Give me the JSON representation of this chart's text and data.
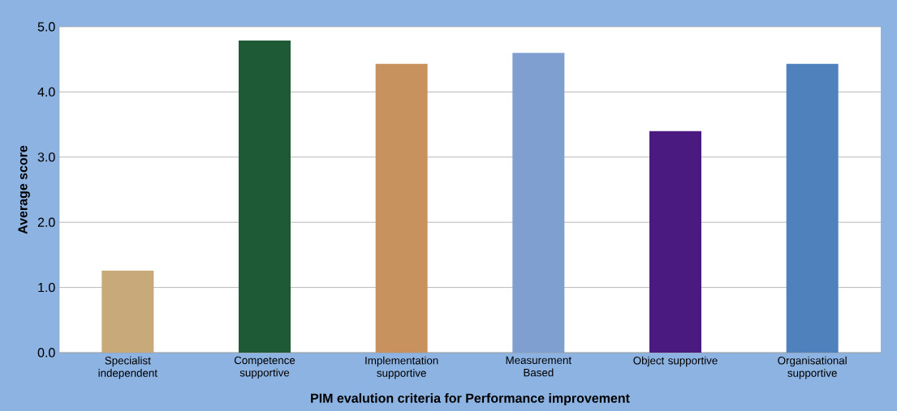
{
  "chart_data": {
    "type": "bar",
    "xlabel": "PIM evalution criteria for Performance improvement",
    "ylabel": "Average score",
    "categories": [
      "Specialist independent",
      "Competence supportive",
      "Implementation supportive",
      "Measurement Based",
      "Object supportive",
      "Organisational supportive"
    ],
    "values": [
      1.26,
      4.79,
      4.43,
      4.6,
      3.4,
      4.43
    ],
    "colors": [
      "#c8a97a",
      "#1e5a36",
      "#c8925e",
      "#7f9fd0",
      "#4a1a80",
      "#4f81bd"
    ],
    "ylim": [
      0,
      5
    ],
    "yticks": [
      {
        "value": 0,
        "label": "0.0"
      },
      {
        "value": 1,
        "label": "1.0"
      },
      {
        "value": 2,
        "label": "2.0"
      },
      {
        "value": 3,
        "label": "3.0"
      },
      {
        "value": 4,
        "label": "4.0"
      },
      {
        "value": 5,
        "label": "5.0"
      }
    ],
    "grid": "y"
  }
}
